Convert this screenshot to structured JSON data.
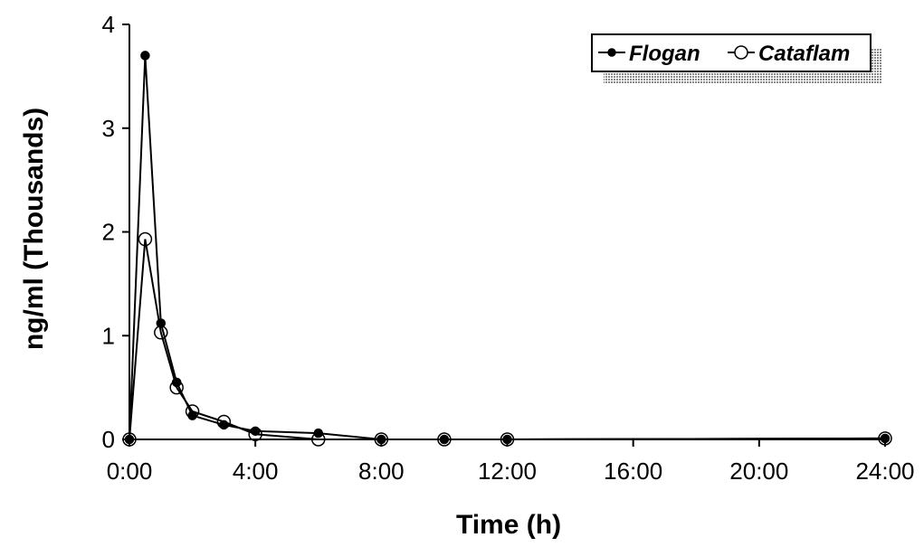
{
  "chart_data": {
    "type": "line",
    "title": "",
    "xlabel": "Time (h)",
    "ylabel": "ng/ml (Thousands)",
    "xlim": [
      0,
      24
    ],
    "ylim": [
      0,
      4
    ],
    "x_ticks": [
      {
        "value": 0,
        "label": "0:00"
      },
      {
        "value": 4,
        "label": "4:00"
      },
      {
        "value": 8,
        "label": "8:00"
      },
      {
        "value": 12,
        "label": "12:00"
      },
      {
        "value": 16,
        "label": "16:00"
      },
      {
        "value": 20,
        "label": "20:00"
      },
      {
        "value": 24,
        "label": "24:00"
      }
    ],
    "y_ticks": [
      {
        "value": 0,
        "label": "0"
      },
      {
        "value": 1,
        "label": "1"
      },
      {
        "value": 2,
        "label": "2"
      },
      {
        "value": 3,
        "label": "3"
      },
      {
        "value": 4,
        "label": "4"
      }
    ],
    "grid": false,
    "legend_position": "top-right",
    "series": [
      {
        "name": "Flogan",
        "marker": "filled-circle",
        "x": [
          0,
          0.5,
          1,
          1.5,
          2,
          3,
          4,
          6,
          8,
          10,
          12,
          24
        ],
        "y": [
          0,
          3.7,
          1.12,
          0.55,
          0.23,
          0.14,
          0.08,
          0.06,
          0,
          0,
          0,
          0.01
        ]
      },
      {
        "name": "Cataflam",
        "marker": "open-circle",
        "x": [
          0,
          0.5,
          1,
          1.5,
          2,
          3,
          4,
          6,
          8,
          10,
          12,
          24
        ],
        "y": [
          0,
          1.93,
          1.03,
          0.5,
          0.27,
          0.17,
          0.05,
          0,
          0,
          0,
          0,
          0.01
        ]
      }
    ],
    "colors": {
      "line": "#000000",
      "legend_shadow": "#b8b8b8"
    }
  }
}
